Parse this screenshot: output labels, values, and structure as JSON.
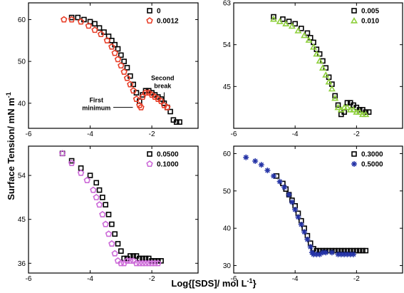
{
  "figure": {
    "ylabel": "Surface Tension/ mN m",
    "ylabel_sup": "-1",
    "xlabel": "Log{[SDS]/ mol L",
    "xlabel_sup": "-1",
    "xlabel_end": "}"
  },
  "chart_data": [
    {
      "type": "scatter",
      "panel": "top-left",
      "xlim": [
        -6,
        -0.5
      ],
      "ylim": [
        34,
        64
      ],
      "xticks": [
        -6,
        -4,
        -2
      ],
      "yticks": [
        40,
        50,
        60
      ],
      "legend_position": "top-right",
      "grid": false,
      "annotations": [
        {
          "text_lines": [
            "First",
            "minimum"
          ],
          "points_to": [
            -2.5,
            39
          ]
        },
        {
          "text_lines": [
            "Second",
            "break"
          ],
          "points_to": [
            -1.6,
            39.5
          ]
        }
      ],
      "series": [
        {
          "name": "0",
          "marker": "square",
          "color": "#000000",
          "x": [
            -4.6,
            -4.4,
            -4.2,
            -4.0,
            -3.85,
            -3.7,
            -3.55,
            -3.4,
            -3.3,
            -3.2,
            -3.1,
            -3.0,
            -2.9,
            -2.8,
            -2.7,
            -2.6,
            -2.5,
            -2.4,
            -2.3,
            -2.2,
            -2.1,
            -2.0,
            -1.9,
            -1.8,
            -1.7,
            -1.6,
            -1.5,
            -1.4,
            -1.3,
            -1.2,
            -1.1
          ],
          "y": [
            60.5,
            60.5,
            60.0,
            59.5,
            59.0,
            58.0,
            57.0,
            56.0,
            55.0,
            54.0,
            53.0,
            51.5,
            50.0,
            48.5,
            46.5,
            44.5,
            42.5,
            40.5,
            42.0,
            43.0,
            43.0,
            42.5,
            42.0,
            41.5,
            41.0,
            40.0,
            39.0,
            38.0,
            36.0,
            35.5,
            35.5
          ]
        },
        {
          "name": "0.0012",
          "marker": "pentagon",
          "color": "#e8402a",
          "x": [
            -4.85,
            -4.6,
            -4.3,
            -4.05,
            -3.85,
            -3.65,
            -3.45,
            -3.3,
            -3.2,
            -3.1,
            -3.0,
            -2.9,
            -2.8,
            -2.7,
            -2.6,
            -2.5,
            -2.4,
            -2.35,
            -2.3,
            -2.2,
            -2.1,
            -2.0,
            -1.9,
            -1.8,
            -1.7,
            -1.6,
            -1.5
          ],
          "y": [
            60.0,
            60.0,
            59.5,
            58.5,
            57.5,
            56.5,
            55.0,
            53.5,
            52.0,
            50.5,
            49.0,
            47.5,
            46.0,
            44.5,
            43.0,
            41.0,
            39.5,
            39.0,
            41.5,
            42.5,
            42.5,
            42.0,
            41.5,
            41.0,
            40.5,
            39.5,
            39.0
          ]
        }
      ]
    },
    {
      "type": "scatter",
      "panel": "top-right",
      "xlim": [
        -6,
        -0.5
      ],
      "ylim": [
        36,
        63
      ],
      "xticks": [
        -6,
        -4,
        -2
      ],
      "yticks": [
        45,
        54,
        63
      ],
      "legend_position": "top-right",
      "grid": false,
      "series": [
        {
          "name": "0.005",
          "marker": "square",
          "color": "#000000",
          "x": [
            -4.7,
            -4.4,
            -4.2,
            -4.0,
            -3.8,
            -3.6,
            -3.5,
            -3.4,
            -3.3,
            -3.2,
            -3.1,
            -3.0,
            -2.9,
            -2.8,
            -2.7,
            -2.6,
            -2.5,
            -2.4,
            -2.3,
            -2.2,
            -2.1,
            -2.0,
            -1.9,
            -1.8,
            -1.7,
            -1.6
          ],
          "y": [
            60.0,
            59.5,
            59.0,
            58.5,
            57.5,
            56.5,
            55.5,
            54.5,
            53.0,
            52.0,
            50.5,
            49.0,
            47.0,
            45.5,
            43.0,
            41.0,
            39.0,
            39.5,
            41.5,
            41.5,
            41.0,
            40.5,
            40.0,
            40.0,
            39.5,
            39.5
          ]
        },
        {
          "name": "0.010",
          "marker": "triangle",
          "color": "#8dcf3a",
          "x": [
            -4.7,
            -4.5,
            -4.3,
            -4.1,
            -3.9,
            -3.7,
            -3.55,
            -3.4,
            -3.3,
            -3.2,
            -3.1,
            -3.0,
            -2.9,
            -2.8,
            -2.7,
            -2.6,
            -2.5,
            -2.4,
            -2.3,
            -2.2,
            -2.1,
            -2.0,
            -1.9,
            -1.8,
            -1.7
          ],
          "y": [
            59.5,
            59.0,
            58.5,
            58.0,
            57.0,
            56.0,
            55.0,
            53.5,
            52.0,
            50.5,
            49.0,
            47.5,
            46.0,
            44.5,
            42.5,
            40.5,
            40.0,
            40.5,
            40.5,
            40.0,
            40.0,
            39.5,
            39.5,
            39.0,
            39.0
          ]
        }
      ]
    },
    {
      "type": "scatter",
      "panel": "bottom-left",
      "xlim": [
        -6,
        -0.5
      ],
      "ylim": [
        34,
        60
      ],
      "xticks": [
        -6,
        -4,
        -2
      ],
      "yticks": [
        36,
        45,
        54
      ],
      "legend_position": "top-right",
      "grid": false,
      "series": [
        {
          "name": "0.0500",
          "marker": "square",
          "color": "#000000",
          "x": [
            -4.9,
            -4.6,
            -4.3,
            -4.0,
            -3.8,
            -3.7,
            -3.6,
            -3.5,
            -3.4,
            -3.3,
            -3.2,
            -3.1,
            -3.0,
            -2.9,
            -2.8,
            -2.7,
            -2.6,
            -2.5,
            -2.4,
            -2.3,
            -2.2,
            -2.1,
            -2.0,
            -1.9,
            -1.8,
            -1.7
          ],
          "y": [
            58.5,
            57.0,
            55.5,
            54.0,
            52.5,
            51.0,
            49.5,
            48.0,
            46.0,
            44.0,
            42.0,
            40.0,
            38.5,
            37.0,
            37.0,
            37.5,
            37.5,
            37.5,
            37.0,
            37.0,
            37.0,
            37.0,
            36.5,
            36.5,
            36.5,
            36.5
          ]
        },
        {
          "name": "0.1000",
          "marker": "pentagon",
          "color": "#cc6ad8",
          "x": [
            -4.9,
            -4.6,
            -4.3,
            -4.1,
            -3.9,
            -3.8,
            -3.7,
            -3.6,
            -3.5,
            -3.4,
            -3.3,
            -3.2,
            -3.1,
            -3.0,
            -2.9,
            -2.8,
            -2.7,
            -2.6,
            -2.5,
            -2.4,
            -2.3,
            -2.2,
            -2.1,
            -2.0,
            -1.9,
            -1.8
          ],
          "y": [
            58.5,
            56.5,
            54.5,
            53.0,
            51.0,
            49.5,
            48.0,
            46.0,
            44.0,
            42.0,
            40.0,
            38.0,
            36.5,
            36.0,
            36.0,
            36.5,
            36.5,
            36.5,
            36.0,
            36.0,
            36.0,
            36.0,
            36.0,
            36.0,
            36.0,
            36.0
          ]
        }
      ]
    },
    {
      "type": "scatter",
      "panel": "bottom-right",
      "xlim": [
        -6,
        -0.5
      ],
      "ylim": [
        28,
        62
      ],
      "xticks": [
        -6,
        -4,
        -2
      ],
      "yticks": [
        30,
        40,
        50,
        60
      ],
      "legend_position": "top-right",
      "grid": false,
      "series": [
        {
          "name": "0.3000",
          "marker": "square",
          "color": "#000000",
          "x": [
            -4.6,
            -4.4,
            -4.3,
            -4.2,
            -4.1,
            -4.0,
            -3.9,
            -3.8,
            -3.7,
            -3.6,
            -3.5,
            -3.4,
            -3.3,
            -3.2,
            -3.1,
            -3.0,
            -2.9,
            -2.8,
            -2.7,
            -2.6,
            -2.5,
            -2.4,
            -2.3,
            -2.2,
            -2.1,
            -2.0,
            -1.9,
            -1.8,
            -1.7
          ],
          "y": [
            54.0,
            52.0,
            50.5,
            49.0,
            47.5,
            46.0,
            44.0,
            42.0,
            40.0,
            38.0,
            36.0,
            34.5,
            34.0,
            34.0,
            34.0,
            34.0,
            34.0,
            34.0,
            34.0,
            34.0,
            34.0,
            34.0,
            34.0,
            34.0,
            34.0,
            34.0,
            34.0,
            34.0,
            34.0
          ]
        },
        {
          "name": "0.5000",
          "marker": "star",
          "color": "#2433a6",
          "x": [
            -5.6,
            -5.3,
            -5.1,
            -4.9,
            -4.7,
            -4.5,
            -4.35,
            -4.2,
            -4.1,
            -4.0,
            -3.9,
            -3.8,
            -3.7,
            -3.6,
            -3.5,
            -3.45,
            -3.4,
            -3.3,
            -3.2,
            -3.1,
            -3.0,
            -2.8,
            -2.6,
            -2.5,
            -2.4,
            -2.3,
            -2.2,
            -2.1
          ],
          "y": [
            59.0,
            58.0,
            57.0,
            55.5,
            54.0,
            52.5,
            51.0,
            49.0,
            47.0,
            45.0,
            43.0,
            41.0,
            39.0,
            37.0,
            35.0,
            33.5,
            33.0,
            33.0,
            33.0,
            33.5,
            33.5,
            33.5,
            33.0,
            33.0,
            33.0,
            33.0,
            33.0,
            33.0
          ]
        }
      ]
    }
  ]
}
